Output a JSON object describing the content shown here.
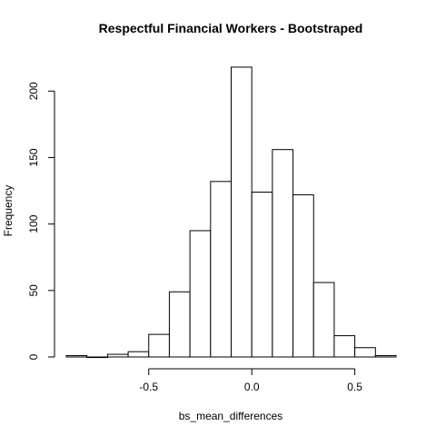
{
  "chart_data": {
    "type": "bar",
    "title": "Respectful Financial Workers - Bootstraped",
    "xlabel": "bs_mean_differences",
    "ylabel": "Frequency",
    "bins": [
      {
        "start": -0.9,
        "end": -0.8,
        "count": 1
      },
      {
        "start": -0.8,
        "end": -0.7,
        "count": 0
      },
      {
        "start": -0.7,
        "end": -0.6,
        "count": 2
      },
      {
        "start": -0.6,
        "end": -0.5,
        "count": 4
      },
      {
        "start": -0.5,
        "end": -0.4,
        "count": 17
      },
      {
        "start": -0.4,
        "end": -0.3,
        "count": 49
      },
      {
        "start": -0.3,
        "end": -0.2,
        "count": 95
      },
      {
        "start": -0.2,
        "end": -0.1,
        "count": 132
      },
      {
        "start": -0.1,
        "end": 0.0,
        "count": 218
      },
      {
        "start": 0.0,
        "end": 0.1,
        "count": 124
      },
      {
        "start": 0.1,
        "end": 0.2,
        "count": 156
      },
      {
        "start": 0.2,
        "end": 0.3,
        "count": 122
      },
      {
        "start": 0.3,
        "end": 0.4,
        "count": 56
      },
      {
        "start": 0.4,
        "end": 0.5,
        "count": 16
      },
      {
        "start": 0.5,
        "end": 0.6,
        "count": 7
      },
      {
        "start": 0.6,
        "end": 0.7,
        "count": 1
      }
    ],
    "xlim": [
      -0.9,
      0.7
    ],
    "ylim": [
      0,
      220
    ],
    "xticks": [
      -0.5,
      0.0,
      0.5
    ],
    "xtick_labels": [
      "-0.5",
      "0.0",
      "0.5"
    ],
    "yticks": [
      0,
      50,
      100,
      150,
      200
    ],
    "ytick_labels": [
      "0",
      "50",
      "100",
      "150",
      "200"
    ],
    "grid": false,
    "legend": "none",
    "colors": {
      "bar_fill": "#ffffff",
      "bar_stroke": "#000000"
    }
  }
}
